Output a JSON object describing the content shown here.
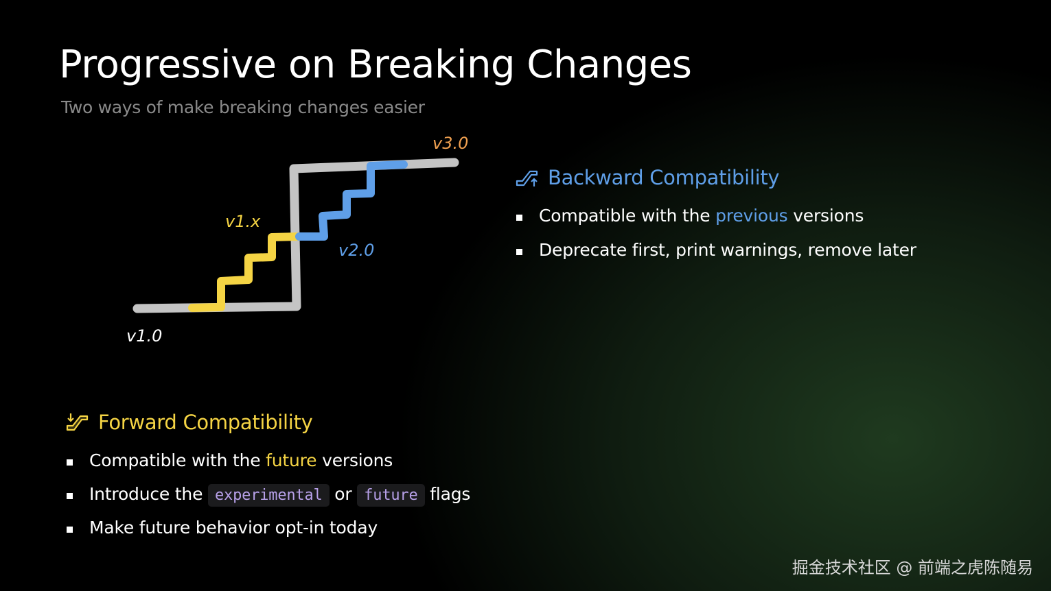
{
  "slide": {
    "title": "Progressive on Breaking Changes",
    "subtitle": "Two ways of make breaking changes easier"
  },
  "diagram": {
    "labels": {
      "v1_0": "v1.0",
      "v1_x": "v1.x",
      "v2_0": "v2.0",
      "v3_0": "v3.0"
    },
    "colors": {
      "main": "#c4c4c4",
      "v1x": "#f5d444",
      "v2": "#5f9fe8",
      "v3_label": "#f0a050"
    }
  },
  "backward": {
    "icon": "escalator-up-icon",
    "heading": "Backward Compatibility",
    "items": [
      {
        "pre": "Compatible with the ",
        "highlight": "previous",
        "post": " versions"
      },
      {
        "text": "Deprecate first, print warnings, remove later"
      }
    ]
  },
  "forward": {
    "icon": "escalator-down-icon",
    "heading": "Forward Compatibility",
    "items": [
      {
        "pre": "Compatible with the ",
        "highlight": "future",
        "post": " versions"
      },
      {
        "pre": "Introduce the ",
        "code1": "experimental",
        "mid": " or ",
        "code2": "future",
        "post": " flags"
      },
      {
        "text": "Make future behavior opt-in today"
      }
    ]
  },
  "watermark": "掘金技术社区 @ 前端之虎陈随易",
  "colors": {
    "accent_blue": "#5f9fe8",
    "accent_yellow": "#f5d444",
    "code_text": "#b7a0e8"
  }
}
